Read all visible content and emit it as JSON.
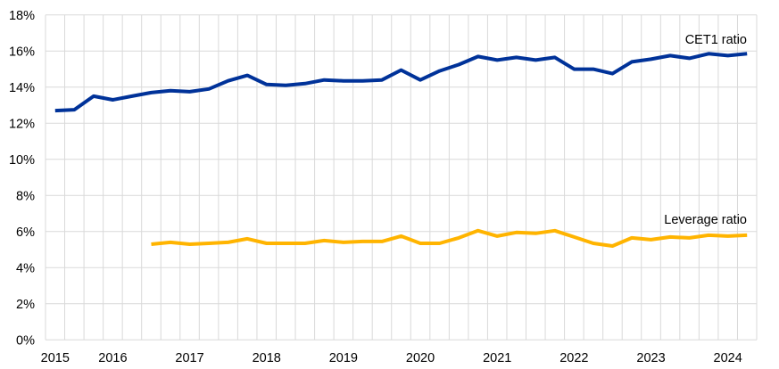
{
  "chart_data": {
    "type": "line",
    "title": "",
    "xlabel": "",
    "ylabel": "",
    "categories": [
      "2015 Q2",
      "2015 Q3",
      "2015 Q4",
      "2016 Q1",
      "2016 Q2",
      "2016 Q3",
      "2016 Q4",
      "2017 Q1",
      "2017 Q2",
      "2017 Q3",
      "2017 Q4",
      "2018 Q1",
      "2018 Q2",
      "2018 Q3",
      "2018 Q4",
      "2019 Q1",
      "2019 Q2",
      "2019 Q3",
      "2019 Q4",
      "2020 Q1",
      "2020 Q2",
      "2020 Q3",
      "2020 Q4",
      "2021 Q1",
      "2021 Q2",
      "2021 Q3",
      "2021 Q4",
      "2022 Q1",
      "2022 Q2",
      "2022 Q3",
      "2022 Q4",
      "2023 Q1",
      "2023 Q2",
      "2023 Q3",
      "2023 Q4",
      "2024 Q1",
      "2024 Q2"
    ],
    "x_tick_labels": [
      {
        "index": 0,
        "label": "2015"
      },
      {
        "index": 3,
        "label": "2016"
      },
      {
        "index": 7,
        "label": "2017"
      },
      {
        "index": 11,
        "label": "2018"
      },
      {
        "index": 15,
        "label": "2019"
      },
      {
        "index": 19,
        "label": "2020"
      },
      {
        "index": 23,
        "label": "2021"
      },
      {
        "index": 27,
        "label": "2022"
      },
      {
        "index": 31,
        "label": "2023"
      },
      {
        "index": 35,
        "label": "2024"
      }
    ],
    "y_ticks": [
      0,
      2,
      4,
      6,
      8,
      10,
      12,
      14,
      16,
      18
    ],
    "y_tick_suffix": "%",
    "ylim": [
      0,
      18
    ],
    "grid": true,
    "series": [
      {
        "name": "CET1 ratio",
        "color": "#003299",
        "values": [
          12.7,
          12.75,
          13.5,
          13.3,
          13.5,
          13.7,
          13.8,
          13.75,
          13.9,
          14.35,
          14.65,
          14.15,
          14.1,
          14.2,
          14.4,
          14.35,
          14.35,
          14.4,
          14.95,
          14.4,
          14.9,
          15.25,
          15.7,
          15.5,
          15.65,
          15.5,
          15.65,
          15.0,
          15.0,
          14.75,
          15.4,
          15.55,
          15.75,
          15.6,
          15.85,
          15.75,
          15.85
        ]
      },
      {
        "name": "Leverage ratio",
        "color": "#FFB400",
        "values": [
          null,
          null,
          null,
          null,
          null,
          5.3,
          5.4,
          5.3,
          5.35,
          5.4,
          5.6,
          5.35,
          5.35,
          5.35,
          5.5,
          5.4,
          5.45,
          5.45,
          5.75,
          5.35,
          5.35,
          5.65,
          6.05,
          5.75,
          5.95,
          5.9,
          6.05,
          5.7,
          5.35,
          5.2,
          5.65,
          5.55,
          5.7,
          5.65,
          5.8,
          5.75,
          5.8
        ]
      }
    ]
  }
}
